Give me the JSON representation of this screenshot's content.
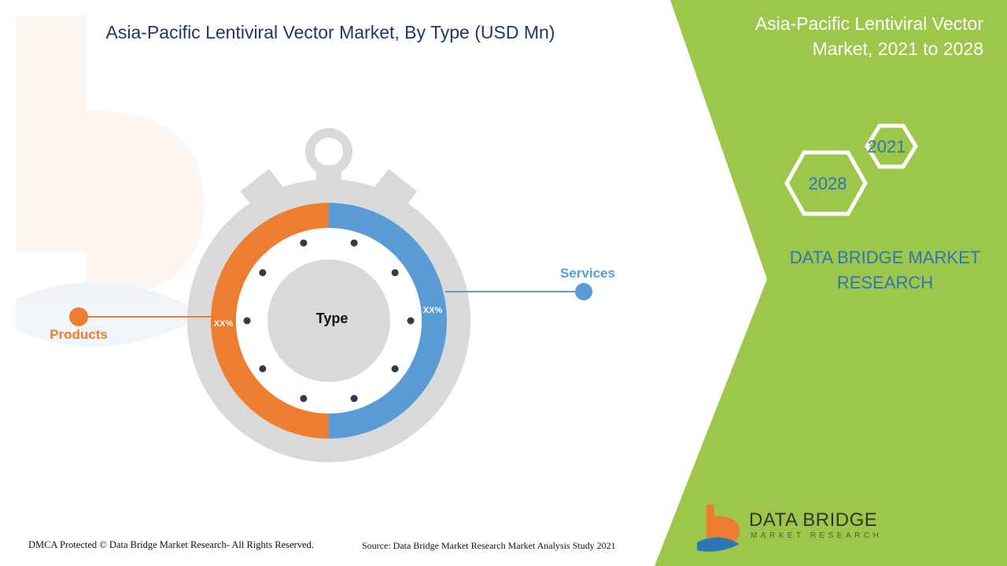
{
  "title": "Asia-Pacific Lentiviral Vector Market, By Type (USD Mn)",
  "side_panel": {
    "title": "Asia-Pacific Lentiviral Vector Market, 2021 to 2028",
    "year_start": "2021",
    "year_end": "2028",
    "brand": "DATA BRIDGE MARKET RESEARCH",
    "color": "#9dc74a"
  },
  "chart_data": {
    "type": "pie",
    "center_label": "Type",
    "categories": [
      "Products",
      "Services"
    ],
    "values": [
      50,
      50
    ],
    "value_labels": [
      "XX%",
      "XX%"
    ],
    "colors": [
      "#ed7d31",
      "#5b9bd5"
    ]
  },
  "footer": {
    "left": "DMCA Protected © Data Bridge Market Research- All Rights Reserved.",
    "right": "Source: Data Bridge Market Research Market Analysis Study 2021"
  },
  "logo": {
    "name": "DATA BRIDGE",
    "tagline": "MARKET RESEARCH"
  }
}
